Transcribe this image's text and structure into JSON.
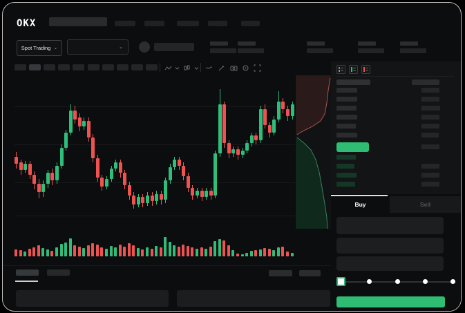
{
  "topbar": {
    "logo": "OKX",
    "nav_placeholder_count": 5
  },
  "ticker": {
    "market_selector_label": "Spot Trading",
    "chevron": "⌄",
    "stat_pair_count": 5
  },
  "toolbar": {
    "timeframe_slot_count": 10,
    "icons": [
      "zigzag-line-icon",
      "chevron-down-icon",
      "candle-chart-icon",
      "chevron-down-icon",
      "trendline-icon",
      "brush-icon",
      "camera-icon",
      "settings-circle-icon",
      "fullscreen-icon"
    ]
  },
  "colors": {
    "up": "#2ebd7b",
    "down": "#ee5351",
    "accent_green": "#2ebd73",
    "depth_ask_fill": "#2a1a19",
    "depth_ask_line": "#a85753",
    "depth_bid_fill": "#0f2a1d",
    "depth_bid_line": "#35845b",
    "bid_row_bar": "#153826"
  },
  "chart_data": {
    "type": "candlestick",
    "title": "",
    "xlabel": "",
    "ylabel": "",
    "price_range": [
      0,
      100
    ],
    "grid": true,
    "candles": [
      [
        46,
        49,
        38,
        41
      ],
      [
        42,
        44,
        34,
        37
      ],
      [
        37,
        43,
        35,
        41
      ],
      [
        41,
        43,
        31,
        34
      ],
      [
        34,
        36,
        24,
        28
      ],
      [
        28,
        31,
        18,
        22
      ],
      [
        22,
        30,
        19,
        28
      ],
      [
        28,
        37,
        25,
        35
      ],
      [
        35,
        38,
        27,
        30
      ],
      [
        30,
        42,
        28,
        40
      ],
      [
        40,
        54,
        38,
        52
      ],
      [
        52,
        64,
        50,
        62
      ],
      [
        62,
        81,
        60,
        77
      ],
      [
        77,
        80,
        68,
        71
      ],
      [
        72,
        75,
        63,
        66
      ],
      [
        66,
        72,
        64,
        70
      ],
      [
        70,
        72,
        56,
        59
      ],
      [
        59,
        61,
        42,
        45
      ],
      [
        45,
        47,
        29,
        32
      ],
      [
        32,
        34,
        23,
        26
      ],
      [
        26,
        33,
        24,
        31
      ],
      [
        31,
        40,
        29,
        38
      ],
      [
        38,
        44,
        36,
        42
      ],
      [
        42,
        44,
        32,
        35
      ],
      [
        35,
        37,
        24,
        27
      ],
      [
        27,
        29,
        17,
        20
      ],
      [
        20,
        22,
        11,
        14
      ],
      [
        14,
        21,
        12,
        19
      ],
      [
        19,
        21,
        12,
        15
      ],
      [
        15,
        22,
        13,
        20
      ],
      [
        20,
        22,
        13,
        16
      ],
      [
        16,
        23,
        14,
        21
      ],
      [
        21,
        23,
        14,
        17
      ],
      [
        17,
        32,
        15,
        30
      ],
      [
        30,
        41,
        28,
        39
      ],
      [
        39,
        46,
        37,
        44
      ],
      [
        44,
        46,
        37,
        40
      ],
      [
        40,
        42,
        30,
        33
      ],
      [
        33,
        35,
        22,
        25
      ],
      [
        25,
        27,
        17,
        20
      ],
      [
        20,
        25,
        18,
        23
      ],
      [
        23,
        25,
        16,
        19
      ],
      [
        19,
        25,
        17,
        23
      ],
      [
        23,
        25,
        17,
        20
      ],
      [
        20,
        50,
        18,
        48
      ],
      [
        48,
        91,
        46,
        81
      ],
      [
        81,
        83,
        52,
        55
      ],
      [
        55,
        57,
        45,
        48
      ],
      [
        48,
        53,
        46,
        51
      ],
      [
        51,
        53,
        44,
        47
      ],
      [
        47,
        52,
        45,
        50
      ],
      [
        50,
        57,
        48,
        55
      ],
      [
        55,
        62,
        53,
        60
      ],
      [
        60,
        62,
        54,
        57
      ],
      [
        57,
        80,
        55,
        78
      ],
      [
        78,
        81,
        65,
        67
      ],
      [
        67,
        69,
        59,
        62
      ],
      [
        62,
        73,
        60,
        71
      ],
      [
        71,
        90,
        69,
        83
      ],
      [
        83,
        85,
        75,
        78
      ],
      [
        78,
        80,
        70,
        73
      ],
      [
        73,
        83,
        71,
        81
      ]
    ],
    "volume": [
      35,
      30,
      22,
      38,
      45,
      52,
      40,
      34,
      28,
      42,
      60,
      68,
      88,
      55,
      48,
      40,
      52,
      64,
      58,
      45,
      38,
      50,
      44,
      56,
      48,
      62,
      55,
      40,
      35,
      45,
      38,
      50,
      42,
      95,
      70,
      55,
      48,
      58,
      50,
      42,
      36,
      44,
      38,
      46,
      72,
      85,
      78,
      55,
      30,
      14,
      10,
      16,
      26,
      30,
      34,
      40,
      36,
      30,
      42,
      46,
      22,
      18
    ],
    "depth": {
      "asks_line": [
        [
          50,
          4
        ],
        [
          47,
          22
        ],
        [
          45,
          40
        ],
        [
          42,
          56
        ],
        [
          36,
          66
        ],
        [
          24,
          74
        ],
        [
          8,
          82
        ],
        [
          2,
          86
        ]
      ],
      "bids_line": [
        [
          2,
          90
        ],
        [
          12,
          98
        ],
        [
          22,
          108
        ],
        [
          29,
          122
        ],
        [
          34,
          140
        ],
        [
          38,
          162
        ],
        [
          42,
          186
        ],
        [
          45,
          206
        ],
        [
          46,
          222
        ]
      ]
    }
  },
  "orderbook": {
    "view_icons": [
      "orderbook-all-icon",
      "orderbook-bids-icon",
      "orderbook-asks-icon"
    ],
    "asks": [
      {
        "pw": 30,
        "vw": 26
      },
      {
        "pw": 30,
        "vw": 26
      },
      {
        "pw": 29,
        "vw": 27
      },
      {
        "pw": 30,
        "vw": 26
      },
      {
        "pw": 28,
        "vw": 26
      },
      {
        "pw": 30,
        "vw": 25
      }
    ],
    "last_price_highlight": true,
    "bids": [
      {
        "pw": 28,
        "has_value": false
      },
      {
        "pw": 26,
        "has_value": true
      },
      {
        "pw": 29,
        "has_value": true
      },
      {
        "pw": 27,
        "has_value": true
      }
    ]
  },
  "trade_panel": {
    "buy_tab_label": "Buy",
    "sell_tab_label": "Sell",
    "input_count": 3,
    "slider_stops": [
      0,
      25,
      50,
      75,
      100
    ],
    "slider_value": 0
  }
}
